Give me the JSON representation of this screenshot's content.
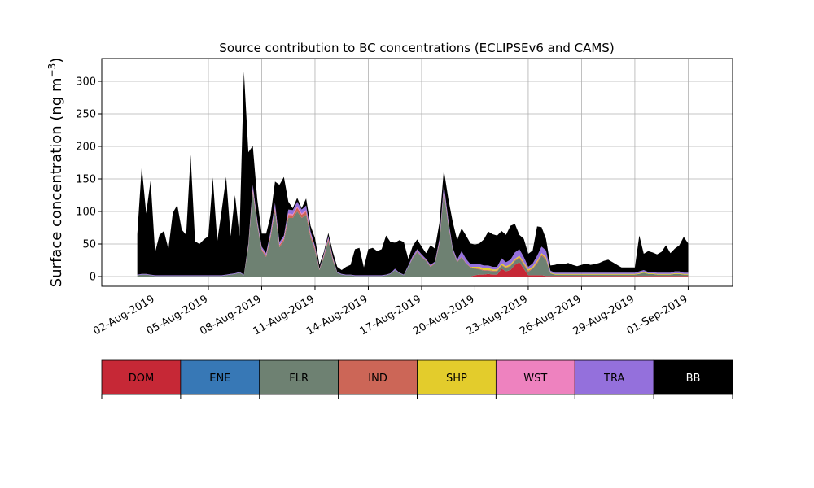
{
  "chart_data": {
    "type": "area",
    "title": "Source contribution to BC concentrations (ECLIPSEv6 and CAMS)",
    "ylabel": "Surface concentration (ng m",
    "ylabel_exponent": "−3",
    "ylabel_suffix": ")",
    "ylim": [
      -15,
      335
    ],
    "xlim": [
      "2019-07-30T00:00",
      "2019-09-03T12:00"
    ],
    "yticks": [
      0,
      50,
      100,
      150,
      200,
      250,
      300
    ],
    "xticks": [
      "2019-08-02",
      "2019-08-05",
      "2019-08-08",
      "2019-08-11",
      "2019-08-14",
      "2019-08-17",
      "2019-08-20",
      "2019-08-23",
      "2019-08-26",
      "2019-08-29",
      "2019-09-01"
    ],
    "xtick_labels": [
      "02-Aug-2019",
      "05-Aug-2019",
      "08-Aug-2019",
      "11-Aug-2019",
      "14-Aug-2019",
      "17-Aug-2019",
      "20-Aug-2019",
      "23-Aug-2019",
      "26-Aug-2019",
      "29-Aug-2019",
      "01-Sep-2019"
    ],
    "grid": true,
    "legend_position": "bottom",
    "stacked": true,
    "x": [
      "2019-08-01T00:00",
      "2019-08-01T06:00",
      "2019-08-01T12:00",
      "2019-08-01T18:00",
      "2019-08-02T00:00",
      "2019-08-02T06:00",
      "2019-08-02T12:00",
      "2019-08-02T18:00",
      "2019-08-03T00:00",
      "2019-08-03T06:00",
      "2019-08-03T12:00",
      "2019-08-03T18:00",
      "2019-08-04T00:00",
      "2019-08-04T06:00",
      "2019-08-04T12:00",
      "2019-08-04T18:00",
      "2019-08-05T00:00",
      "2019-08-05T06:00",
      "2019-08-05T12:00",
      "2019-08-05T18:00",
      "2019-08-06T00:00",
      "2019-08-06T06:00",
      "2019-08-06T12:00",
      "2019-08-06T18:00",
      "2019-08-07T00:00",
      "2019-08-07T06:00",
      "2019-08-07T12:00",
      "2019-08-07T18:00",
      "2019-08-08T00:00",
      "2019-08-08T06:00",
      "2019-08-08T12:00",
      "2019-08-08T18:00",
      "2019-08-09T00:00",
      "2019-08-09T06:00",
      "2019-08-09T12:00",
      "2019-08-09T18:00",
      "2019-08-10T00:00",
      "2019-08-10T06:00",
      "2019-08-10T12:00",
      "2019-08-10T18:00",
      "2019-08-11T00:00",
      "2019-08-11T06:00",
      "2019-08-11T12:00",
      "2019-08-11T18:00",
      "2019-08-12T00:00",
      "2019-08-12T06:00",
      "2019-08-12T12:00",
      "2019-08-12T18:00",
      "2019-08-13T00:00",
      "2019-08-13T06:00",
      "2019-08-13T12:00",
      "2019-08-13T18:00",
      "2019-08-14T00:00",
      "2019-08-14T06:00",
      "2019-08-14T12:00",
      "2019-08-14T18:00",
      "2019-08-15T00:00",
      "2019-08-15T06:00",
      "2019-08-15T12:00",
      "2019-08-15T18:00",
      "2019-08-16T00:00",
      "2019-08-16T06:00",
      "2019-08-16T12:00",
      "2019-08-16T18:00",
      "2019-08-17T00:00",
      "2019-08-17T06:00",
      "2019-08-17T12:00",
      "2019-08-17T18:00",
      "2019-08-18T00:00",
      "2019-08-18T06:00",
      "2019-08-18T12:00",
      "2019-08-18T18:00",
      "2019-08-19T00:00",
      "2019-08-19T06:00",
      "2019-08-19T12:00",
      "2019-08-19T18:00",
      "2019-08-20T00:00",
      "2019-08-20T06:00",
      "2019-08-20T12:00",
      "2019-08-20T18:00",
      "2019-08-21T00:00",
      "2019-08-21T06:00",
      "2019-08-21T12:00",
      "2019-08-21T18:00",
      "2019-08-22T00:00",
      "2019-08-22T06:00",
      "2019-08-22T12:00",
      "2019-08-22T18:00",
      "2019-08-23T00:00",
      "2019-08-23T06:00",
      "2019-08-23T12:00",
      "2019-08-23T18:00",
      "2019-08-24T00:00",
      "2019-08-24T06:00",
      "2019-08-24T12:00",
      "2019-08-24T18:00",
      "2019-08-25T00:00",
      "2019-08-25T06:00",
      "2019-08-25T12:00",
      "2019-08-25T18:00",
      "2019-08-26T00:00",
      "2019-08-26T06:00",
      "2019-08-26T12:00",
      "2019-08-26T18:00",
      "2019-08-27T00:00",
      "2019-08-27T06:00",
      "2019-08-27T12:00",
      "2019-08-27T18:00",
      "2019-08-28T00:00",
      "2019-08-28T06:00",
      "2019-08-28T12:00",
      "2019-08-28T18:00",
      "2019-08-29T00:00",
      "2019-08-29T06:00",
      "2019-08-29T12:00",
      "2019-08-29T18:00",
      "2019-08-30T00:00",
      "2019-08-30T06:00",
      "2019-08-30T12:00",
      "2019-08-30T18:00",
      "2019-08-31T00:00",
      "2019-08-31T06:00",
      "2019-08-31T12:00",
      "2019-08-31T18:00",
      "2019-09-01T00:00"
    ],
    "series": [
      {
        "name": "DOM",
        "color": "#c62836",
        "values": [
          0,
          0,
          0,
          0,
          0,
          0,
          0,
          0,
          0,
          0,
          0,
          0,
          0,
          0,
          0,
          0,
          0,
          0,
          0,
          0,
          0,
          0,
          0,
          0,
          0,
          0,
          0,
          0,
          0,
          0,
          0,
          0,
          0,
          0,
          0,
          0,
          0,
          0,
          0,
          0,
          0,
          0,
          0,
          0,
          0,
          0,
          0,
          0,
          0,
          0,
          0,
          0,
          0,
          0,
          0,
          0,
          0,
          0,
          0,
          0,
          0,
          0,
          0,
          0,
          0,
          0,
          0,
          0,
          0,
          0,
          0,
          0,
          0,
          0,
          0,
          0,
          2,
          3,
          3,
          4,
          3,
          3,
          12,
          8,
          10,
          18,
          22,
          12,
          2,
          2,
          2,
          2,
          1,
          1,
          1,
          1,
          1,
          1,
          1,
          1,
          1,
          1,
          1,
          1,
          1,
          1,
          1,
          1,
          1,
          1,
          1,
          1,
          1,
          1,
          1,
          1,
          1,
          1,
          1,
          1,
          1,
          1,
          1,
          1,
          1
        ]
      },
      {
        "name": "ENE",
        "color": "#3778b6",
        "values": [
          0,
          0,
          0,
          0,
          0,
          0,
          0,
          0,
          0,
          0,
          0,
          0,
          0,
          0,
          0,
          0,
          0,
          0,
          0,
          0,
          0,
          0,
          0,
          0,
          0,
          0,
          0,
          0,
          0,
          0,
          0,
          0,
          0,
          0,
          0,
          0,
          0,
          0,
          0,
          0,
          0,
          0,
          0,
          0,
          0,
          0,
          0,
          0,
          0,
          0,
          0,
          0,
          0,
          0,
          0,
          0,
          0,
          0,
          0,
          0,
          0,
          0,
          0,
          0,
          0,
          0,
          0,
          0,
          0,
          0,
          0,
          0,
          0,
          0,
          0,
          0,
          0,
          0,
          0,
          0,
          0,
          0,
          0,
          0,
          0,
          0,
          0,
          0,
          0,
          0,
          0,
          0,
          0,
          0,
          0,
          0,
          0,
          0,
          0,
          0,
          0,
          0,
          0,
          0,
          0,
          0,
          0,
          0,
          0,
          0,
          0,
          0,
          0,
          0,
          0,
          0,
          0,
          0,
          0,
          0,
          0,
          0,
          0,
          0,
          0
        ]
      },
      {
        "name": "FLR",
        "color": "#6e8172",
        "values": [
          2,
          3,
          3,
          2,
          1,
          1,
          1,
          1,
          1,
          1,
          1,
          1,
          1,
          1,
          1,
          1,
          1,
          1,
          1,
          1,
          2,
          3,
          4,
          6,
          2,
          45,
          130,
          80,
          40,
          30,
          60,
          100,
          45,
          55,
          90,
          90,
          100,
          90,
          95,
          60,
          40,
          10,
          30,
          55,
          25,
          6,
          3,
          2,
          2,
          1,
          1,
          1,
          1,
          1,
          1,
          1,
          2,
          4,
          10,
          5,
          2,
          15,
          28,
          38,
          30,
          24,
          15,
          20,
          50,
          130,
          80,
          40,
          22,
          30,
          20,
          14,
          10,
          8,
          6,
          5,
          5,
          5,
          5,
          5,
          6,
          6,
          6,
          6,
          5,
          10,
          18,
          30,
          25,
          4,
          2,
          2,
          2,
          2,
          2,
          2,
          2,
          2,
          2,
          2,
          2,
          2,
          2,
          2,
          2,
          2,
          2,
          2,
          2,
          3,
          5,
          3,
          3,
          2,
          2,
          2,
          2,
          3,
          3,
          2,
          2
        ]
      },
      {
        "name": "IND",
        "color": "#cc6657",
        "values": [
          0,
          0,
          0,
          0,
          0,
          0,
          0,
          0,
          0,
          0,
          0,
          0,
          0,
          0,
          0,
          0,
          0,
          0,
          0,
          0,
          0,
          0,
          0,
          0,
          0,
          2,
          3,
          2,
          2,
          2,
          3,
          4,
          3,
          3,
          5,
          4,
          6,
          5,
          5,
          4,
          3,
          1,
          2,
          3,
          2,
          0,
          0,
          0,
          0,
          0,
          0,
          0,
          0,
          0,
          0,
          0,
          0,
          0,
          0,
          0,
          0,
          0,
          1,
          1,
          1,
          1,
          1,
          1,
          2,
          3,
          2,
          1,
          1,
          1,
          1,
          1,
          1,
          1,
          1,
          1,
          1,
          1,
          1,
          1,
          1,
          1,
          2,
          2,
          2,
          1,
          2,
          2,
          2,
          0,
          0,
          0,
          0,
          0,
          0,
          0,
          0,
          0,
          0,
          0,
          0,
          0,
          0,
          0,
          0,
          0,
          0,
          0,
          0,
          0,
          0,
          0,
          0,
          0,
          0,
          0,
          0,
          0,
          0,
          0,
          0
        ]
      },
      {
        "name": "SHP",
        "color": "#e3cc2c",
        "values": [
          0,
          0,
          0,
          0,
          0,
          0,
          0,
          0,
          0,
          0,
          0,
          0,
          0,
          0,
          0,
          0,
          0,
          0,
          0,
          0,
          0,
          0,
          0,
          0,
          0,
          0,
          0,
          0,
          0,
          0,
          0,
          0,
          0,
          0,
          0,
          0,
          0,
          0,
          0,
          0,
          0,
          0,
          0,
          0,
          0,
          0,
          0,
          0,
          0,
          0,
          0,
          0,
          0,
          0,
          0,
          0,
          0,
          0,
          0,
          0,
          0,
          0,
          0,
          0,
          0,
          0,
          0,
          0,
          0,
          0,
          0,
          0,
          0,
          0,
          0,
          0,
          2,
          3,
          3,
          3,
          2,
          2,
          2,
          2,
          2,
          2,
          2,
          2,
          2,
          2,
          2,
          2,
          2,
          1,
          1,
          1,
          1,
          1,
          1,
          1,
          1,
          1,
          1,
          1,
          1,
          1,
          1,
          1,
          1,
          1,
          1,
          1,
          1,
          1,
          1,
          1,
          1,
          1,
          1,
          1,
          1,
          1,
          1,
          1,
          1
        ]
      },
      {
        "name": "WST",
        "color": "#ee82bf",
        "values": [
          0,
          0,
          0,
          0,
          0,
          0,
          0,
          0,
          0,
          0,
          0,
          0,
          0,
          0,
          0,
          0,
          0,
          0,
          0,
          0,
          0,
          0,
          0,
          0,
          0,
          1,
          2,
          1,
          1,
          1,
          1,
          2,
          1,
          1,
          2,
          2,
          2,
          2,
          2,
          1,
          1,
          0,
          1,
          1,
          1,
          0,
          0,
          0,
          0,
          0,
          0,
          0,
          0,
          0,
          0,
          0,
          0,
          0,
          0,
          0,
          0,
          0,
          0,
          0,
          0,
          0,
          0,
          0,
          1,
          1,
          1,
          0,
          0,
          0,
          0,
          0,
          0,
          0,
          0,
          0,
          0,
          0,
          0,
          0,
          0,
          0,
          0,
          0,
          0,
          0,
          0,
          0,
          0,
          0,
          0,
          0,
          0,
          0,
          0,
          0,
          0,
          0,
          0,
          0,
          0,
          0,
          0,
          0,
          0,
          0,
          0,
          0,
          0,
          0,
          0,
          0,
          0,
          0,
          0,
          0,
          0,
          0,
          0,
          0,
          0
        ]
      },
      {
        "name": "TRA",
        "color": "#9470dc",
        "values": [
          1,
          1,
          1,
          1,
          1,
          1,
          1,
          1,
          1,
          1,
          1,
          1,
          1,
          1,
          1,
          1,
          1,
          1,
          1,
          1,
          1,
          1,
          1,
          1,
          1,
          3,
          6,
          4,
          3,
          3,
          5,
          7,
          4,
          4,
          6,
          6,
          7,
          6,
          7,
          4,
          3,
          1,
          2,
          3,
          2,
          1,
          1,
          1,
          1,
          1,
          1,
          1,
          1,
          1,
          1,
          1,
          1,
          1,
          2,
          1,
          1,
          2,
          3,
          3,
          3,
          2,
          2,
          2,
          4,
          8,
          5,
          3,
          3,
          8,
          6,
          4,
          4,
          4,
          4,
          4,
          4,
          4,
          8,
          6,
          7,
          10,
          10,
          8,
          4,
          5,
          8,
          10,
          10,
          3,
          2,
          2,
          2,
          2,
          2,
          2,
          2,
          2,
          2,
          2,
          2,
          2,
          2,
          2,
          2,
          2,
          2,
          2,
          2,
          3,
          3,
          2,
          2,
          2,
          2,
          2,
          2,
          3,
          3,
          2,
          2
        ]
      },
      {
        "name": "BB",
        "color": "#000000",
        "values": [
          62,
          165,
          93,
          145,
          35,
          62,
          68,
          40,
          96,
          108,
          70,
          62,
          185,
          52,
          48,
          55,
          60,
          150,
          52,
          100,
          150,
          58,
          120,
          55,
          312,
          140,
          60,
          32,
          20,
          30,
          24,
          33,
          88,
          90,
          12,
          3,
          6,
          2,
          11,
          9,
          12,
          6,
          3,
          5,
          8,
          8,
          6,
          12,
          15,
          40,
          42,
          12,
          40,
          42,
          37,
          40,
          60,
          48,
          40,
          50,
          50,
          10,
          15,
          15,
          12,
          9,
          30,
          20,
          25,
          22,
          32,
          40,
          30,
          35,
          36,
          32,
          30,
          32,
          40,
          52,
          50,
          48,
          42,
          42,
          52,
          44,
          22,
          28,
          20,
          20,
          45,
          30,
          18,
          8,
          12,
          14,
          13,
          15,
          12,
          10,
          12,
          14,
          12,
          13,
          15,
          18,
          20,
          16,
          12,
          8,
          8,
          8,
          8,
          55,
          25,
          32,
          30,
          28,
          32,
          42,
          30,
          35,
          40,
          55,
          45
        ]
      }
    ],
    "legend": [
      "DOM",
      "ENE",
      "FLR",
      "IND",
      "SHP",
      "WST",
      "TRA",
      "BB"
    ]
  }
}
